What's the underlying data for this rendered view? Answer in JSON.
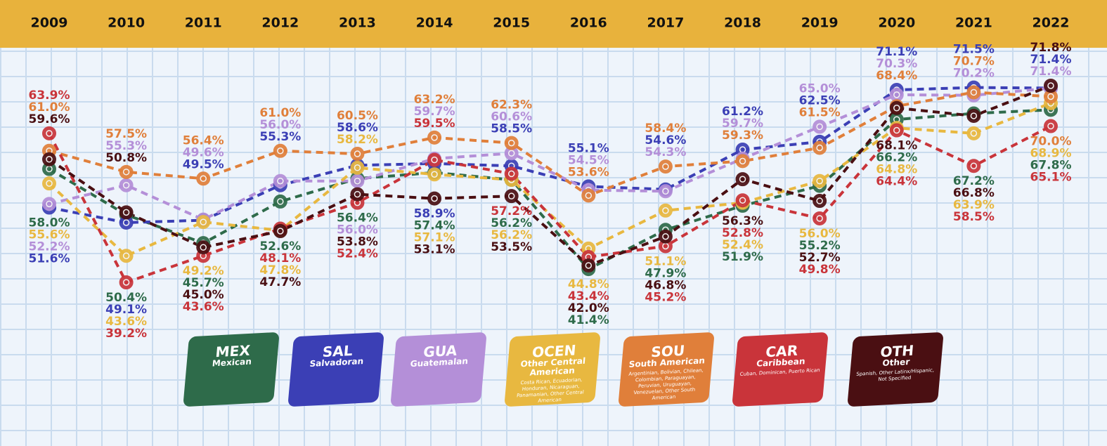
{
  "chart_data": {
    "type": "line",
    "categories": [
      "2009",
      "2010",
      "2011",
      "2012",
      "2013",
      "2014",
      "2015",
      "2016",
      "2017",
      "2018",
      "2019",
      "2020",
      "2021",
      "2022"
    ],
    "series": [
      {
        "name": "MEX",
        "label": "Mexican",
        "color": "#2e6b4a",
        "values": [
          58.0,
          50.4,
          45.7,
          52.6,
          56.4,
          57.4,
          56.2,
          41.4,
          47.9,
          51.9,
          55.2,
          66.2,
          67.2,
          67.8
        ],
        "value_labels": [
          "58.0%",
          "50.4%",
          "45.7%",
          "52.6%",
          "56.4%",
          "57.4%",
          "56.2%",
          "41.4%",
          "47.9%",
          "51.9%",
          "55.2%",
          "66.2%",
          "67.2%",
          "67.8%"
        ]
      },
      {
        "name": "SAL",
        "label": "Salvadoran",
        "color": "#3b3fb5",
        "values": [
          51.6,
          49.1,
          49.5,
          55.3,
          58.6,
          58.9,
          58.5,
          55.1,
          54.6,
          61.2,
          62.5,
          71.1,
          71.5,
          71.4
        ],
        "value_labels": [
          "51.6%",
          "49.1%",
          "49.5%",
          "55.3%",
          "58.6%",
          "58.9%",
          "58.5%",
          "55.1%",
          "54.6%",
          "61.2%",
          "62.5%",
          "71.1%",
          "71.5%",
          "71.4%"
        ]
      },
      {
        "name": "GUA",
        "label": "Guatemalan",
        "color": "#b48fd8",
        "values": [
          52.2,
          55.3,
          49.6,
          56.0,
          56.0,
          59.7,
          60.6,
          54.5,
          54.3,
          59.7,
          65.0,
          70.3,
          70.2,
          71.4
        ],
        "value_labels": [
          "52.2%",
          "55.3%",
          "49.6%",
          "56.0%",
          "56.0%",
          "59.7%",
          "60.6%",
          "54.5%",
          "54.3%",
          "59.7%",
          "65.0%",
          "70.3%",
          "70.2%",
          "71.4%"
        ]
      },
      {
        "name": "OCEN",
        "label": "Other Central American",
        "description": "Costa Rican, Ecuadorian, Honduran, Nicaraguan, Panamanian, Other Central American",
        "color": "#e8b840",
        "values": [
          55.6,
          43.6,
          49.2,
          47.8,
          58.2,
          57.1,
          56.2,
          44.8,
          51.1,
          52.4,
          56.0,
          64.8,
          63.9,
          68.9
        ],
        "value_labels": [
          "55.6%",
          "43.6%",
          "49.2%",
          "47.8%",
          "58.2%",
          "57.1%",
          "56.2%",
          "44.8%",
          "51.1%",
          "52.4%",
          "56.0%",
          "64.8%",
          "63.9%",
          "68.9%"
        ]
      },
      {
        "name": "SOU",
        "label": "South American",
        "description": "Argentinian, Bolivian, Chilean, Colombian, Paraguayan, Peruvian, Uruguayan, Venezuelan, Other South American",
        "color": "#e07f3a",
        "values": [
          61.0,
          57.5,
          56.4,
          61.0,
          60.5,
          63.2,
          62.3,
          53.6,
          58.4,
          59.3,
          61.5,
          68.4,
          70.7,
          70.0
        ],
        "value_labels": [
          "61.0%",
          "57.5%",
          "56.4%",
          "61.0%",
          "60.5%",
          "63.2%",
          "62.3%",
          "53.6%",
          "58.4%",
          "59.3%",
          "61.5%",
          "68.4%",
          "70.7%",
          "70.0%"
        ]
      },
      {
        "name": "CAR",
        "label": "Caribbean",
        "description": "Cuban, Dominican, Puerto Rican",
        "color": "#c9343a",
        "values": [
          63.9,
          39.2,
          43.6,
          48.1,
          52.4,
          59.5,
          57.2,
          43.4,
          45.2,
          52.8,
          49.8,
          64.4,
          58.5,
          65.1
        ],
        "value_labels": [
          "63.9%",
          "39.2%",
          "43.6%",
          "48.1%",
          "52.4%",
          "59.5%",
          "57.2%",
          "43.4%",
          "45.2%",
          "52.8%",
          "49.8%",
          "64.4%",
          "58.5%",
          "65.1%"
        ]
      },
      {
        "name": "OTH",
        "label": "Other",
        "description": "Spanish, Other Latinx/Hispanic, Not Specified",
        "color": "#4a0f12",
        "values": [
          59.6,
          50.8,
          45.0,
          47.7,
          53.8,
          53.1,
          53.5,
          42.0,
          46.8,
          56.3,
          52.7,
          68.1,
          66.8,
          71.8
        ],
        "value_labels": [
          "59.6%",
          "50.8%",
          "45.0%",
          "47.7%",
          "53.8%",
          "53.1%",
          "53.5%",
          "42.0%",
          "46.8%",
          "56.3%",
          "52.7%",
          "68.1%",
          "66.8%",
          "71.8%"
        ]
      }
    ]
  }
}
